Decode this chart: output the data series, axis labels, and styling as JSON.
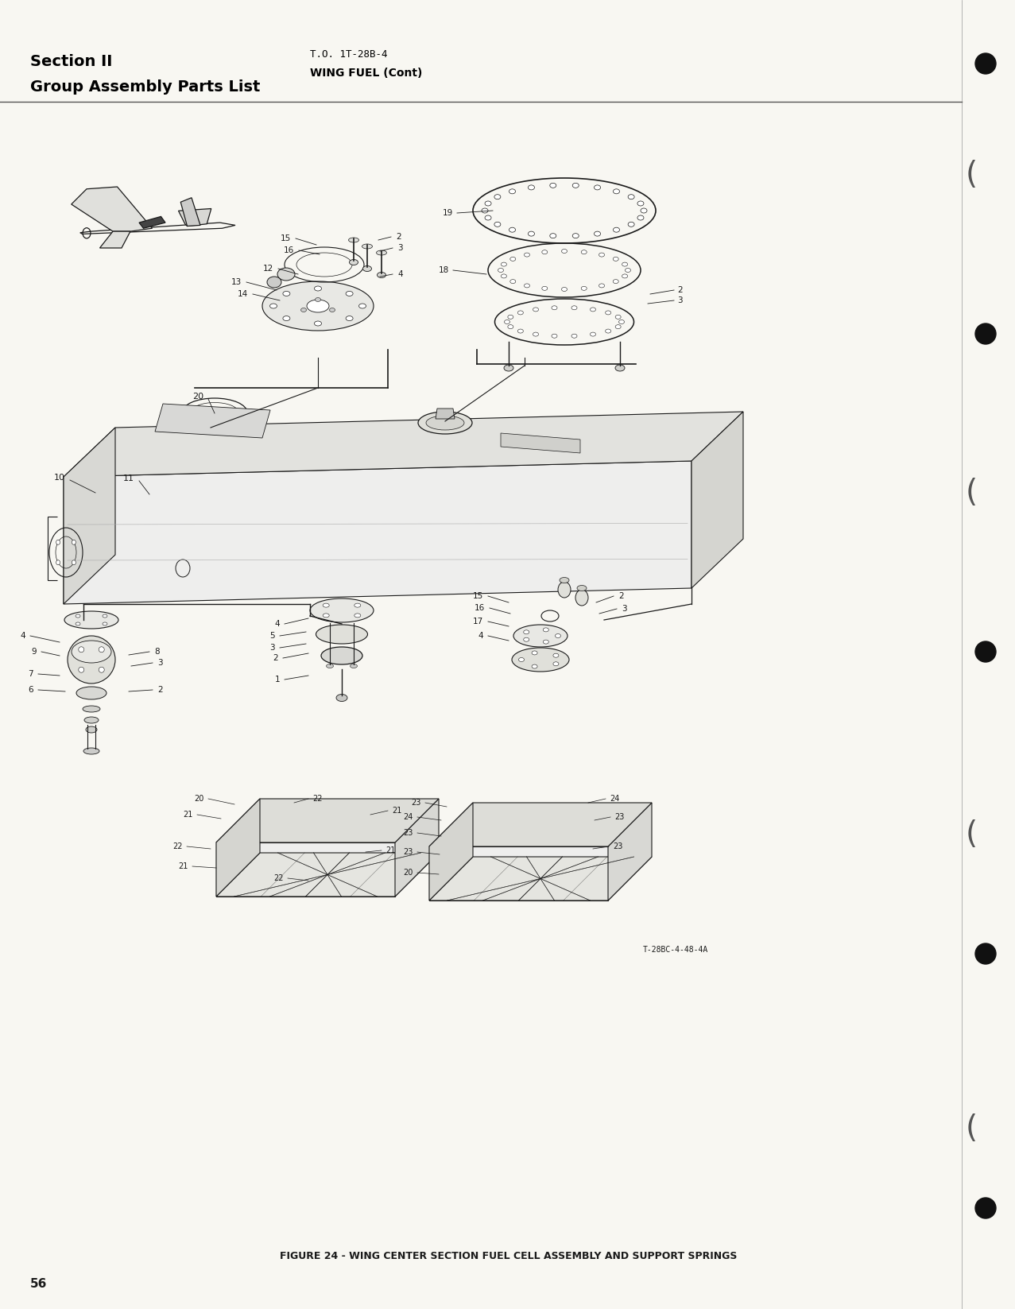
{
  "page_bg": "#f0efe8",
  "title_left_line1": "Section II",
  "title_left_line2": "Group Assembly Parts List",
  "title_right_line1": "T.O. 1T-28B-4",
  "title_right_line2": "WING FUEL (Cont)",
  "figure_caption": "FIGURE 24 - WING CENTER SECTION FUEL CELL ASSEMBLY AND SUPPORT SPRINGS",
  "page_number": "56",
  "doc_ref": "T-28BC-4-48-4A",
  "drawing_color": "#1a1a1a",
  "bg_white": "#f8f7f2"
}
